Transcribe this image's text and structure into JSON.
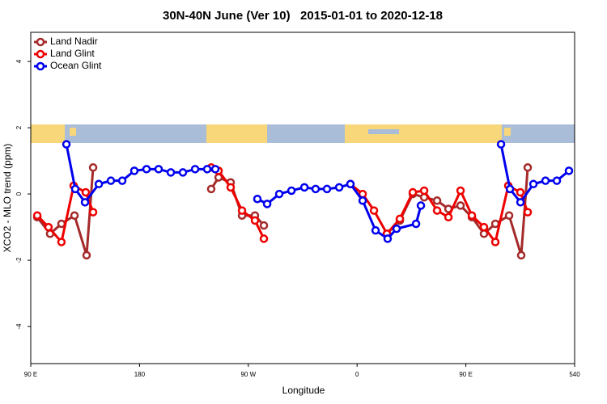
{
  "chart_data": {
    "type": "line",
    "title": "30N-40N June (Ver 10)   2015-01-01 to 2020-12-18",
    "x_label": "Longitude",
    "y_label": "XCO2 - MLO trend (ppm)",
    "xlim": [
      90,
      540
    ],
    "xticks": [
      {
        "value": 90,
        "label": "90 E"
      },
      180,
      {
        "value": 270,
        "label": "90 W"
      },
      {
        "value": 360,
        "label": "0"
      },
      {
        "value": 450,
        "label": "90 E"
      },
      540
    ],
    "ylim": [
      -5.12,
      4.88
    ],
    "yticks": [
      -4,
      -2,
      0,
      2,
      4
    ],
    "legend": "upper left",
    "series": [
      {
        "name": "Land Nadir",
        "color": "#a52a2a",
        "x": [
          95.4,
          106,
          115.4,
          126.2,
          136.2,
          141.6,
          null,
          239.3,
          245.4,
          255.4,
          264.8,
          275.5,
          282.9,
          null,
          384.7,
          395.4,
          406.1,
          415.5,
          426.2,
          435.6,
          445.6,
          455,
          465,
          474.4,
          485.8,
          495.8,
          501.2
        ],
        "values": [
          -0.7,
          -1.2,
          -0.9,
          -0.65,
          -1.85,
          0.8,
          null,
          0.15,
          0.5,
          0.35,
          -0.65,
          -0.65,
          -0.95,
          null,
          -1.2,
          -0.8,
          0,
          -0.1,
          -0.2,
          -0.45,
          -0.35,
          -0.7,
          -1.2,
          -0.9,
          -0.65,
          -1.85,
          0.8
        ]
      },
      {
        "name": "Land Glint",
        "color": "#ee0000",
        "x": [
          95.4,
          104.7,
          115.4,
          125.5,
          135.5,
          141.6,
          null,
          239.3,
          245.4,
          255.4,
          264.8,
          275.5,
          282.9,
          null,
          354.5,
          364.6,
          374,
          384.7,
          395.4,
          406.1,
          415.5,
          426.2,
          435.6,
          445.6,
          455,
          465,
          474.4,
          485.1,
          495.1,
          501.2
        ],
        "values": [
          -0.65,
          -1.0,
          -1.45,
          0.25,
          0.05,
          -0.55,
          null,
          0.8,
          0.7,
          0.2,
          -0.5,
          -0.8,
          -1.35,
          null,
          0.3,
          0,
          -0.5,
          -1.2,
          -0.75,
          0.05,
          0.1,
          -0.5,
          -0.7,
          0.1,
          -0.65,
          -1.0,
          -1.45,
          0.25,
          0.05,
          -0.55
        ]
      },
      {
        "name": "Ocean Glint",
        "color": "#0000ee",
        "x": [
          119.5,
          126.8,
          134.9,
          146.3,
          156.3,
          165.7,
          175.7,
          185.8,
          195.8,
          205.9,
          215.9,
          226,
          236,
          242.7,
          null,
          277.5,
          285.6,
          295.6,
          305.7,
          316.4,
          325.7,
          335.1,
          345.2,
          354.5,
          364.6,
          375.3,
          385.3,
          392.7,
          408.8,
          412.8,
          null,
          479.1,
          486.5,
          495.2,
          505.9,
          515.9,
          525.3,
          535.3
        ],
        "values": [
          1.5,
          0.15,
          -0.25,
          0.3,
          0.4,
          0.4,
          0.7,
          0.75,
          0.75,
          0.65,
          0.65,
          0.75,
          0.75,
          0.75,
          null,
          -0.15,
          -0.3,
          0,
          0.1,
          0.2,
          0.15,
          0.15,
          0.2,
          0.3,
          -0.2,
          -1.1,
          -1.35,
          -1.05,
          -0.9,
          -0.35,
          null,
          1.5,
          0.15,
          -0.25,
          0.3,
          0.4,
          0.4,
          0.7
        ]
      }
    ]
  }
}
